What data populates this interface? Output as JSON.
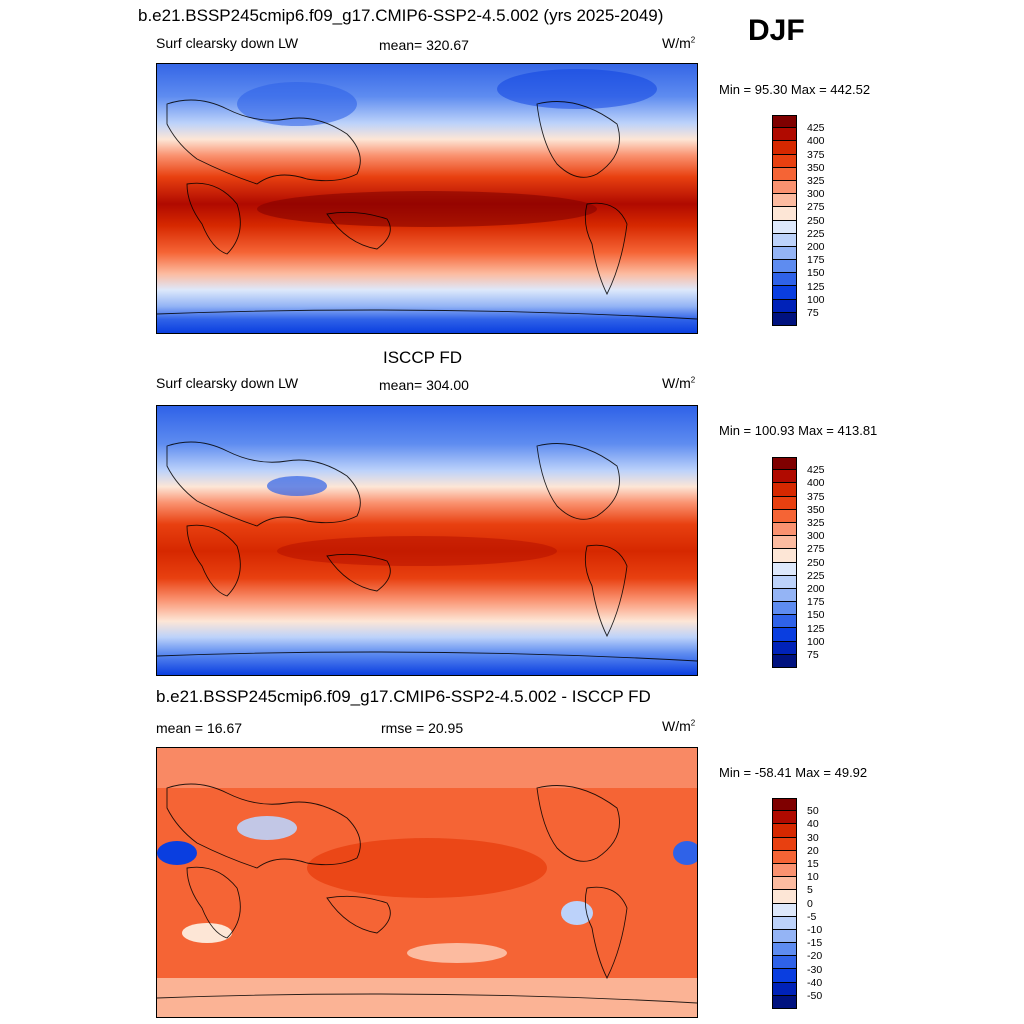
{
  "season": "DJF",
  "panels": [
    {
      "title": "b.e21.BSSP245cmip6.f09_g17.CMIP6-SSP2-4.5.002 (yrs 2025-2049)",
      "left_label": "Surf clearsky down LW",
      "center_label": "mean= 320.67",
      "units": "W/m",
      "units_sup": "2",
      "minmax": "Min =  95.30 Max = 442.52"
    },
    {
      "title": "ISCCP FD",
      "left_label": "Surf clearsky down LW",
      "center_label": "mean= 304.00",
      "units": "W/m",
      "units_sup": "2",
      "minmax": "Min = 100.93 Max = 413.81"
    },
    {
      "title": "b.e21.BSSP245cmip6.f09_g17.CMIP6-SSP2-4.5.002 - ISCCP FD",
      "left_label": "mean =  16.67",
      "center_label": "rmse =  20.95",
      "units": "W/m",
      "units_sup": "2",
      "minmax": "Min = -58.41 Max =  49.92"
    }
  ],
  "colorbars": {
    "abs": {
      "labels": [
        "425",
        "400",
        "375",
        "350",
        "325",
        "300",
        "275",
        "250",
        "225",
        "200",
        "175",
        "150",
        "125",
        "100",
        "75"
      ],
      "colors": [
        "#7f0000",
        "#b00a00",
        "#d62800",
        "#e84010",
        "#f56435",
        "#fa9270",
        "#fcbba0",
        "#fde6d6",
        "#dde8fb",
        "#bcd2fa",
        "#94b4f5",
        "#5e8cf0",
        "#2f62e8",
        "#0a3ee0",
        "#0022b8",
        "#00127f"
      ]
    },
    "diff": {
      "labels": [
        "50",
        "40",
        "30",
        "20",
        "15",
        "10",
        "5",
        "0",
        "-5",
        "-10",
        "-15",
        "-20",
        "-30",
        "-40",
        "-50"
      ],
      "colors": [
        "#7f0000",
        "#b00a00",
        "#d62800",
        "#e84010",
        "#f56435",
        "#fa9270",
        "#fcbba0",
        "#fde6d6",
        "#dde8fb",
        "#bcd2fa",
        "#94b4f5",
        "#5e8cf0",
        "#2f62e8",
        "#0a3ee0",
        "#0022b8",
        "#00127f"
      ]
    }
  },
  "chart_data": [
    {
      "type": "heatmap",
      "title": "b.e21.BSSP245cmip6.f09_g17.CMIP6-SSP2-4.5.002 (yrs 2025-2049)",
      "variable": "Surf clearsky down LW",
      "units": "W/m2",
      "season": "DJF",
      "mean": 320.67,
      "min": 95.3,
      "max": 442.52,
      "levels": [
        75,
        100,
        125,
        150,
        175,
        200,
        225,
        250,
        275,
        300,
        325,
        350,
        375,
        400,
        425
      ]
    },
    {
      "type": "heatmap",
      "title": "ISCCP FD",
      "variable": "Surf clearsky down LW",
      "units": "W/m2",
      "season": "DJF",
      "mean": 304.0,
      "min": 100.93,
      "max": 413.81,
      "levels": [
        75,
        100,
        125,
        150,
        175,
        200,
        225,
        250,
        275,
        300,
        325,
        350,
        375,
        400,
        425
      ]
    },
    {
      "type": "heatmap",
      "title": "b.e21.BSSP245cmip6.f09_g17.CMIP6-SSP2-4.5.002 - ISCCP FD",
      "units": "W/m2",
      "season": "DJF",
      "mean": 16.67,
      "rmse": 20.95,
      "min": -58.41,
      "max": 49.92,
      "levels": [
        -50,
        -40,
        -30,
        -20,
        -15,
        -10,
        -5,
        0,
        5,
        10,
        15,
        20,
        30,
        40,
        50
      ]
    }
  ]
}
